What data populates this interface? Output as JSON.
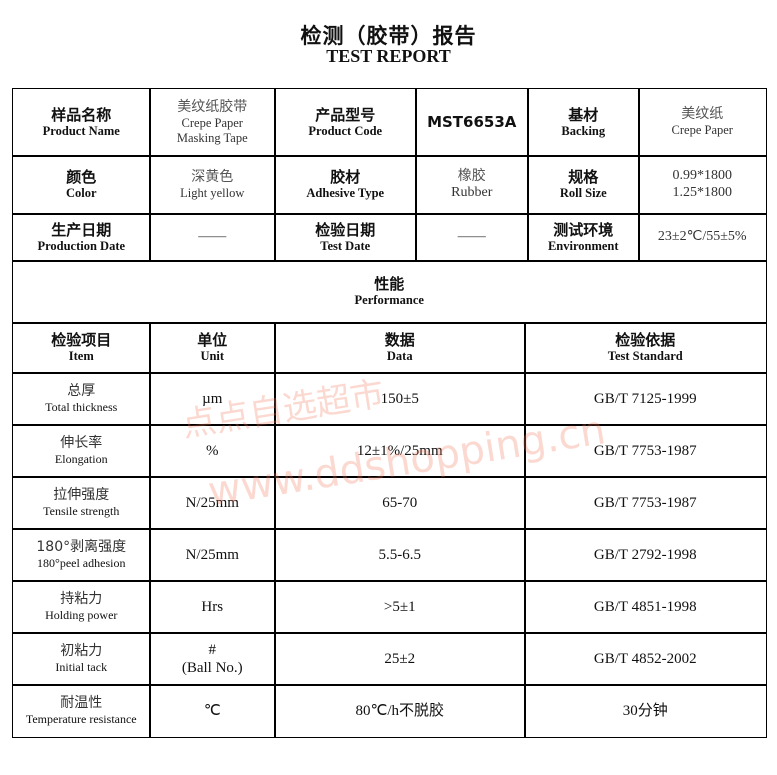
{
  "title_zh": "检测（胶带）报告",
  "title_en": "TEST REPORT",
  "info": [
    [
      {
        "h": [
          "样品名称",
          "Product Name"
        ]
      },
      {
        "v": [
          "美纹纸胶带",
          "Crepe Paper",
          "Masking Tape"
        ]
      },
      {
        "h": [
          "产品型号",
          "Product Code"
        ]
      },
      {
        "b": "MST6653A"
      },
      {
        "h": [
          "基材",
          "Backing"
        ]
      },
      {
        "v": [
          "美纹纸",
          "Crepe Paper"
        ]
      }
    ],
    [
      {
        "h": [
          "颜色",
          "Color"
        ]
      },
      {
        "v": [
          "深黄色",
          "Light yellow"
        ]
      },
      {
        "h": [
          "胶材",
          "Adhesive Type"
        ]
      },
      {
        "v": [
          "橡胶",
          "Rubber"
        ]
      },
      {
        "h": [
          "规格",
          "Roll Size"
        ]
      },
      {
        "v": [
          "0.99*1800",
          "1.25*1800"
        ]
      }
    ],
    [
      {
        "h": [
          "生产日期",
          "Production Date"
        ]
      },
      {
        "v": [
          "——"
        ]
      },
      {
        "h": [
          "检验日期",
          "Test Date"
        ]
      },
      {
        "v": [
          "——"
        ]
      },
      {
        "h": [
          "测试环境",
          "Environment"
        ]
      },
      {
        "v": [
          "23±2℃/55±5%"
        ]
      }
    ]
  ],
  "performance": {
    "zh": "性能",
    "en": "Performance"
  },
  "headers": [
    [
      "检验项目",
      "Item"
    ],
    [
      "单位",
      "Unit"
    ],
    [
      "数据",
      "Data"
    ],
    [
      "检验依据",
      "Test Standard"
    ]
  ],
  "rows": [
    {
      "item": [
        "总厚",
        "Total thickness"
      ],
      "unit": [
        "µm"
      ],
      "data": "150±5",
      "std": "GB/T 7125-1999"
    },
    {
      "item": [
        "伸长率",
        "Elongation"
      ],
      "unit": [
        "%"
      ],
      "data": "12±1%/25mm",
      "std": "GB/T 7753-1987"
    },
    {
      "item": [
        "拉伸强度",
        "Tensile strength"
      ],
      "unit": [
        "N/25mm"
      ],
      "data": "65-70",
      "std": "GB/T 7753-1987"
    },
    {
      "item": [
        "180°剥离强度",
        "180°peel adhesion"
      ],
      "unit": [
        "N/25mm"
      ],
      "data": "5.5-6.5",
      "std": "GB/T 2792-1998"
    },
    {
      "item": [
        "持粘力",
        "Holding power"
      ],
      "unit": [
        "Hrs"
      ],
      "data": ">5±1",
      "std": "GB/T 4851-1998"
    },
    {
      "item": [
        "初粘力",
        "Initial tack"
      ],
      "unit": [
        "#",
        "(Ball No.)"
      ],
      "data": "25±2",
      "std": "GB/T 4852-2002"
    },
    {
      "item": [
        "耐温性",
        "Temperature resistance"
      ],
      "unit": [
        "℃"
      ],
      "data": "80℃/h不脱胶",
      "std": "30分钟"
    }
  ],
  "watermark": {
    "zh": "点点自选超市",
    "en": "www.ddshopping.cn"
  }
}
